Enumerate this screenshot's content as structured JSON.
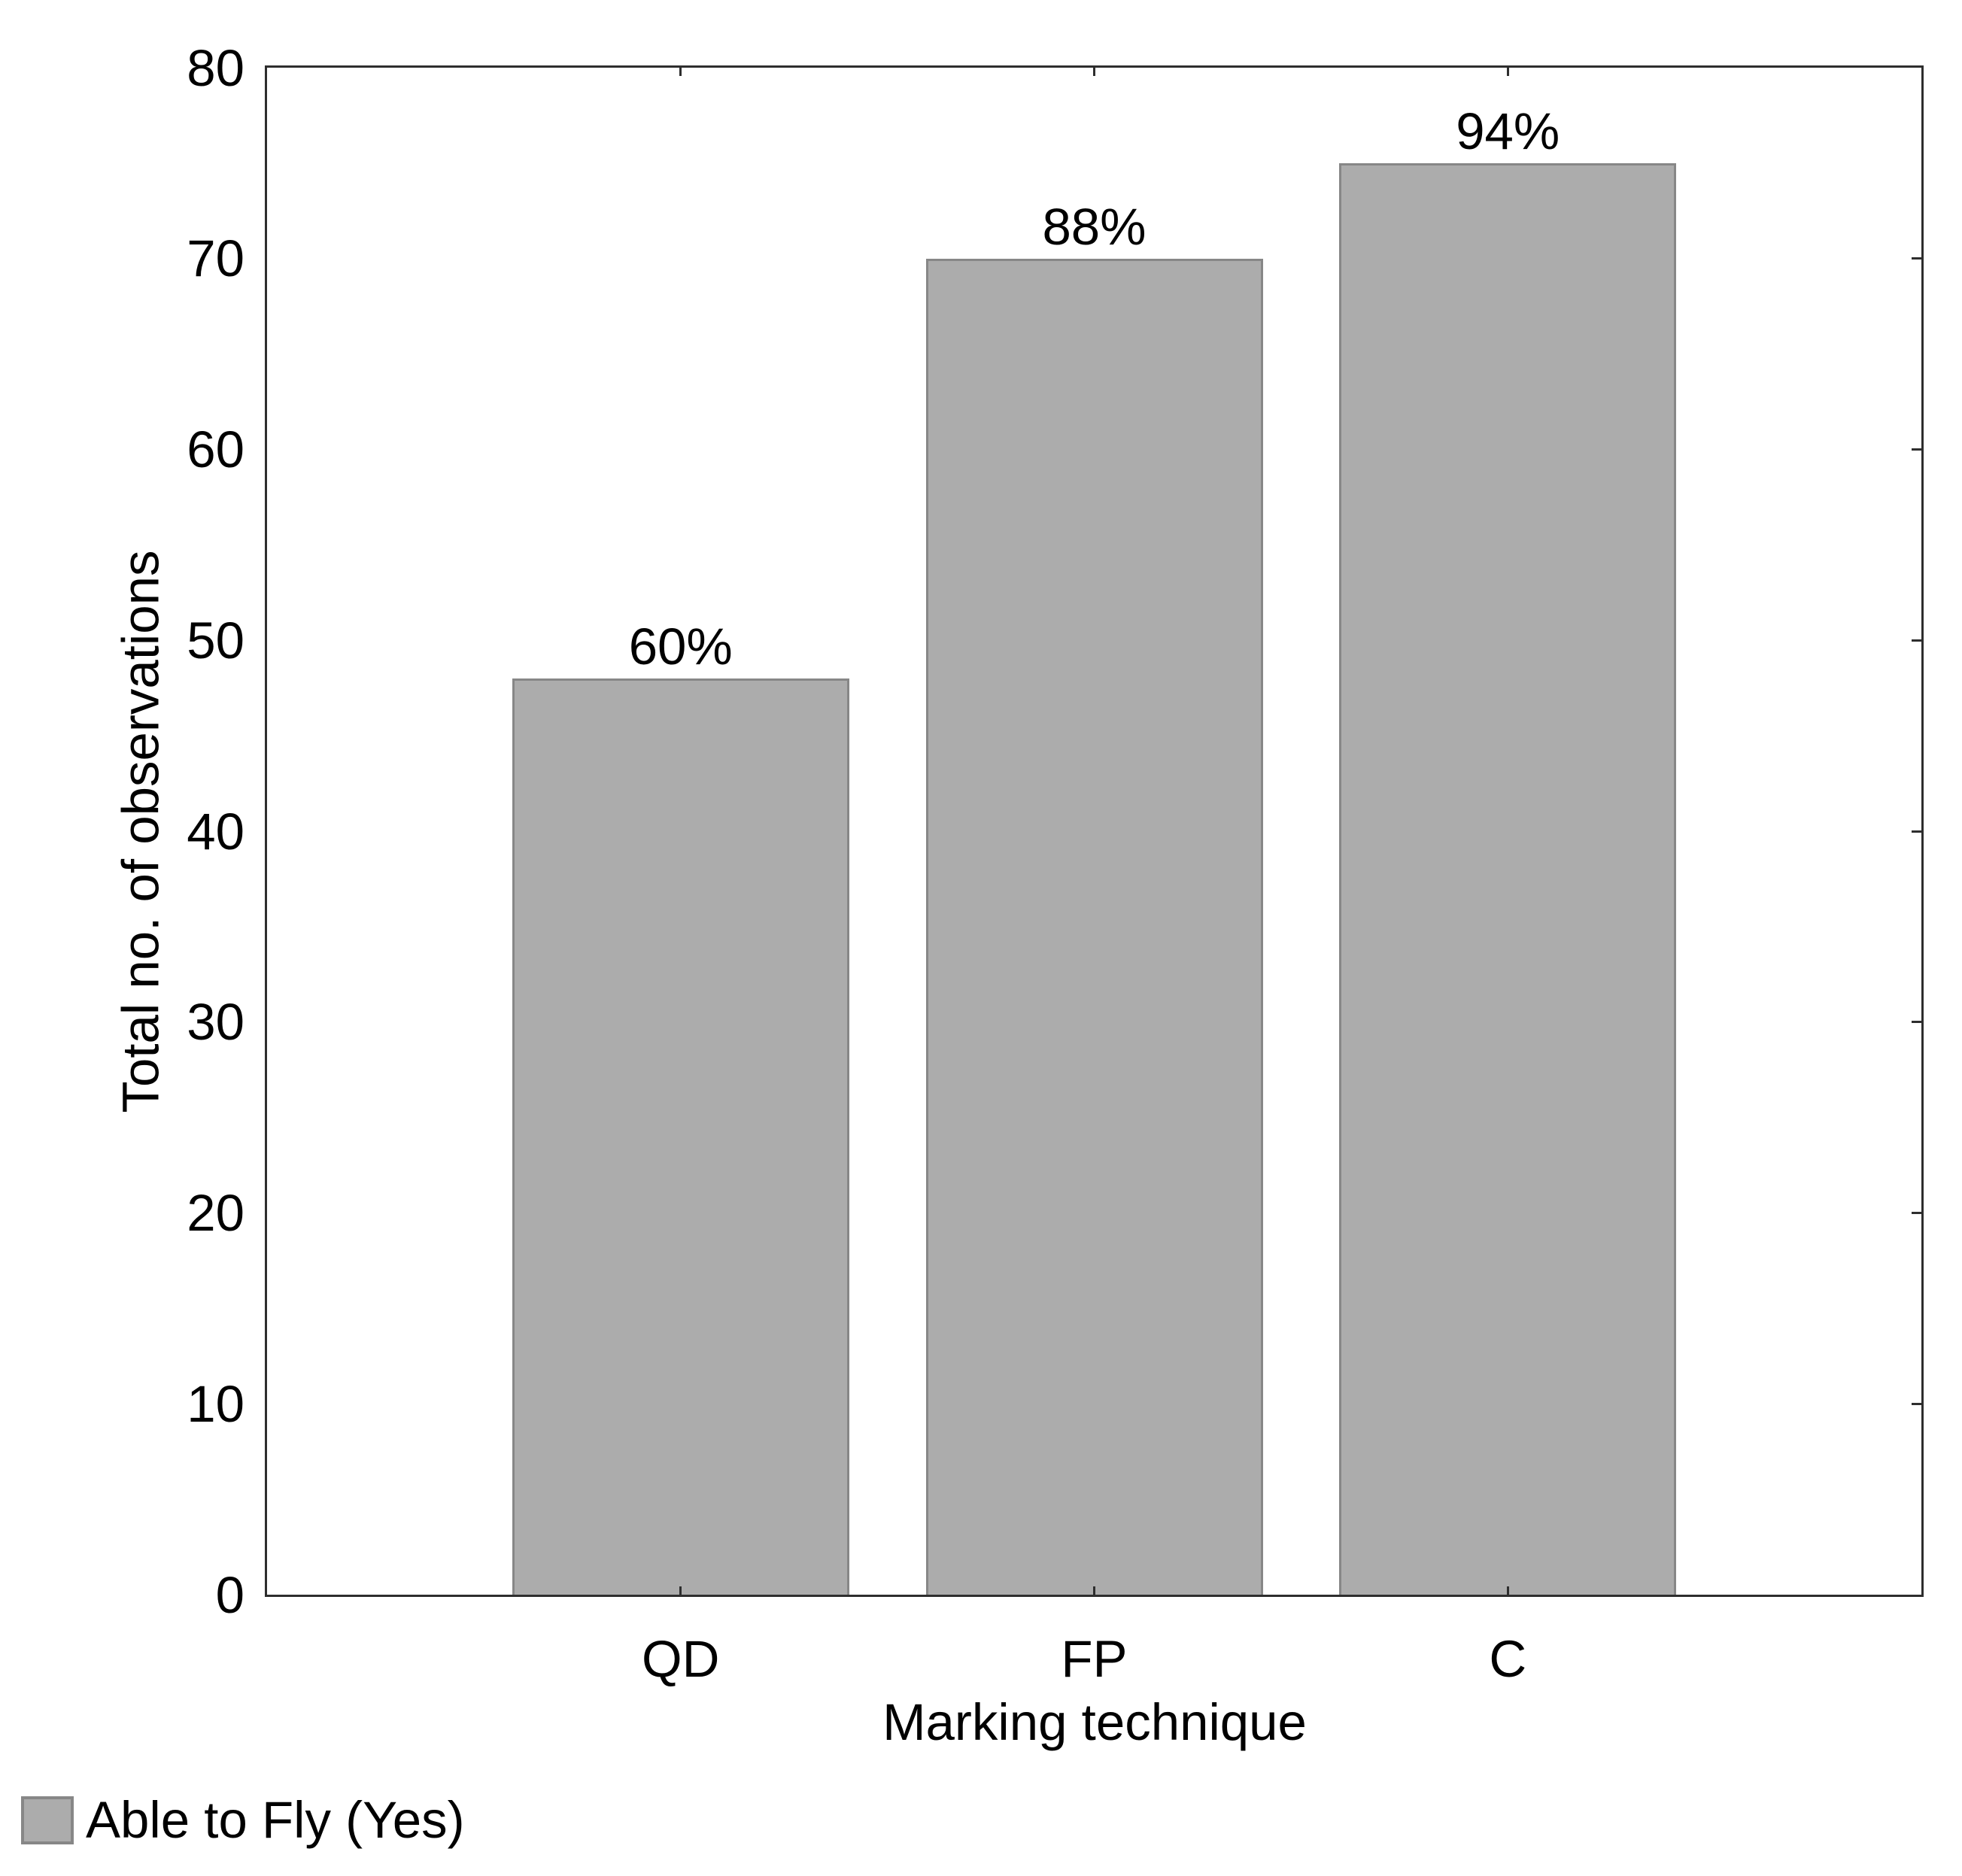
{
  "chart_data": {
    "type": "bar",
    "title": "",
    "categories": [
      "QD",
      "FP",
      "C"
    ],
    "values": [
      48,
      70,
      75
    ],
    "bar_value_labels": [
      "60%",
      "88%",
      "94%"
    ],
    "series": [
      {
        "name": "Able to Fly (Yes)",
        "values": [
          48,
          70,
          75
        ]
      }
    ],
    "xlabel": "Marking technique",
    "ylabel": "Total no. of observations",
    "ylim": [
      0,
      80
    ],
    "yticks": [
      0,
      10,
      20,
      30,
      40,
      50,
      60,
      70,
      80
    ],
    "grid": false,
    "legend_position": "bottom-left",
    "colors": {
      "bar_fill": "#acacac",
      "bar_border": "#878787",
      "frame": "#2e2e2e",
      "text": "#000000",
      "background": "#ffffff"
    }
  },
  "legend": {
    "items": [
      {
        "swatch_color": "#acacac",
        "label": "Able to Fly (Yes)"
      }
    ]
  }
}
